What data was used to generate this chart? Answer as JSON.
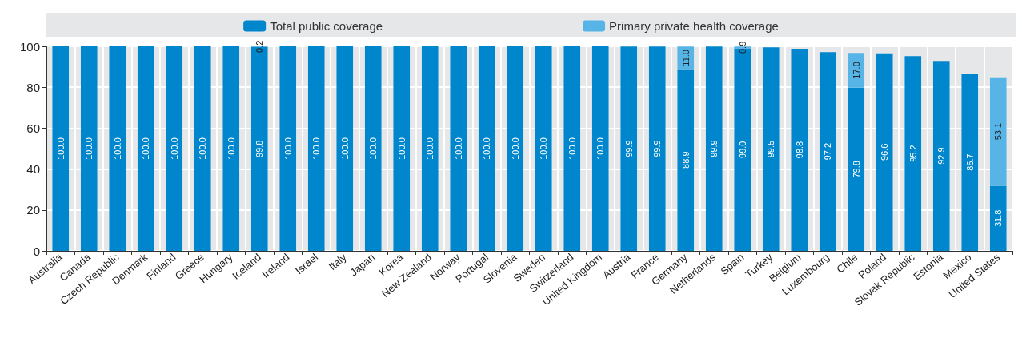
{
  "chart_data": {
    "type": "bar",
    "stacked": true,
    "legend": "top",
    "grid": true,
    "ylim": [
      0,
      100
    ],
    "yticks": [
      0,
      20,
      40,
      60,
      80,
      100
    ],
    "categories": [
      "Australia",
      "Canada",
      "Czech Republic",
      "Denmark",
      "Finland",
      "Greece",
      "Hungary",
      "Iceland",
      "Ireland",
      "Israel",
      "Italy",
      "Japan",
      "Korea",
      "New Zealand",
      "Norway",
      "Portugal",
      "Slovenia",
      "Sweden",
      "Switzerland",
      "United Kingdom",
      "Austria",
      "France",
      "Germany",
      "Netherlands",
      "Spain",
      "Turkey",
      "Belgium",
      "Luxembourg",
      "Chile",
      "Poland",
      "Slovak Republic",
      "Estonia",
      "Mexico",
      "United States"
    ],
    "series": [
      {
        "name": "Total public coverage",
        "color": "#0086cc",
        "values": [
          100,
          100,
          100,
          100,
          100,
          100,
          100,
          99.8,
          100,
          100,
          100,
          100,
          100,
          100,
          100,
          100,
          100,
          100,
          100,
          100,
          99.9,
          99.9,
          88.9,
          99.9,
          99.0,
          99.5,
          98.8,
          97.2,
          79.8,
          96.6,
          95.2,
          92.9,
          86.7,
          31.8
        ],
        "value_labels": [
          "100.0",
          "100.0",
          "100.0",
          "100.0",
          "100.0",
          "100.0",
          "100.0",
          "99.8",
          "100.0",
          "100.0",
          "100.0",
          "100.0",
          "100.0",
          "100.0",
          "100.0",
          "100.0",
          "100.0",
          "100.0",
          "100.0",
          "100.0",
          "99.9",
          "99.9",
          "88.9",
          "99.9",
          "99.0",
          "99.5",
          "98.8",
          "97.2",
          "79.8",
          "96.6",
          "95.2",
          "92.9",
          "86.7",
          "31.8"
        ]
      },
      {
        "name": "Primary private health coverage",
        "color": "#56b4e6",
        "values": [
          null,
          null,
          null,
          null,
          null,
          null,
          null,
          0.2,
          null,
          null,
          null,
          null,
          null,
          null,
          null,
          null,
          null,
          null,
          null,
          null,
          null,
          null,
          11.0,
          null,
          0.9,
          null,
          null,
          null,
          17.0,
          null,
          null,
          null,
          null,
          53.1
        ],
        "value_labels": [
          null,
          null,
          null,
          null,
          null,
          null,
          null,
          "0.2",
          null,
          null,
          null,
          null,
          null,
          null,
          null,
          null,
          null,
          null,
          null,
          null,
          null,
          null,
          "11.0",
          null,
          "0.9",
          null,
          null,
          null,
          "17.0",
          null,
          null,
          null,
          null,
          "53.1"
        ]
      }
    ]
  }
}
